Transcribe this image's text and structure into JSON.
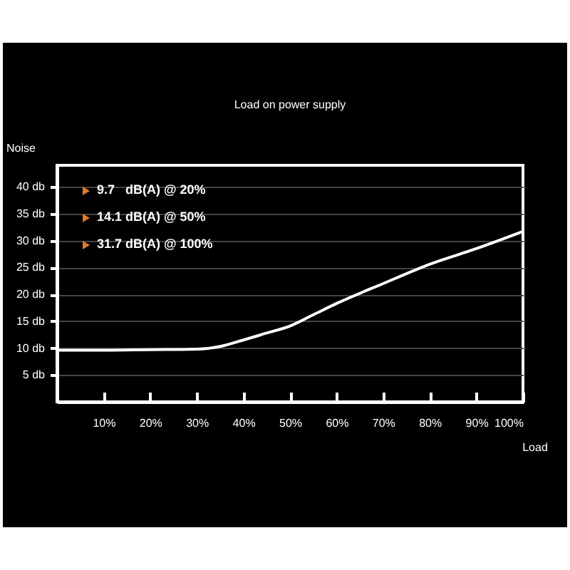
{
  "chart_data": {
    "type": "line",
    "title": "Load on power supply",
    "xlabel": "Load",
    "ylabel": "Noise",
    "x": [
      0,
      10,
      20,
      30,
      35,
      40,
      45,
      50,
      55,
      60,
      70,
      80,
      90,
      100
    ],
    "series": [
      {
        "color": "#ffffff",
        "values": [
          9.6,
          9.6,
          9.7,
          9.8,
          10.3,
          11.5,
          12.8,
          14.1,
          16.2,
          18.3,
          22,
          25.6,
          28.5,
          31.7
        ]
      }
    ],
    "xlim": [
      0,
      100
    ],
    "xticks": [
      {
        "value": 10,
        "label": "10%"
      },
      {
        "value": 20,
        "label": "20%"
      },
      {
        "value": 30,
        "label": "30%"
      },
      {
        "value": 40,
        "label": "40%"
      },
      {
        "value": 50,
        "label": "50%"
      },
      {
        "value": 60,
        "label": "60%"
      },
      {
        "value": 70,
        "label": "70%"
      },
      {
        "value": 80,
        "label": "80%"
      },
      {
        "value": 90,
        "label": "90%"
      },
      {
        "value": 100,
        "label": "100%"
      }
    ],
    "ylim": [
      0,
      44
    ],
    "yticks": [
      {
        "value": 5,
        "label": "5 db"
      },
      {
        "value": 10,
        "label": "10 db"
      },
      {
        "value": 15,
        "label": "15 db"
      },
      {
        "value": 20,
        "label": "20 db"
      },
      {
        "value": 25,
        "label": "25 db"
      },
      {
        "value": 30,
        "label": "30 db"
      },
      {
        "value": 35,
        "label": "35 db"
      },
      {
        "value": 40,
        "label": "40 db"
      }
    ],
    "grid": "y",
    "line_style": "solid",
    "annotations": [
      "9.7   dB(A) @ 20%",
      "14.1 dB(A) @ 50%",
      "31.7 dB(A) @ 100%"
    ]
  }
}
